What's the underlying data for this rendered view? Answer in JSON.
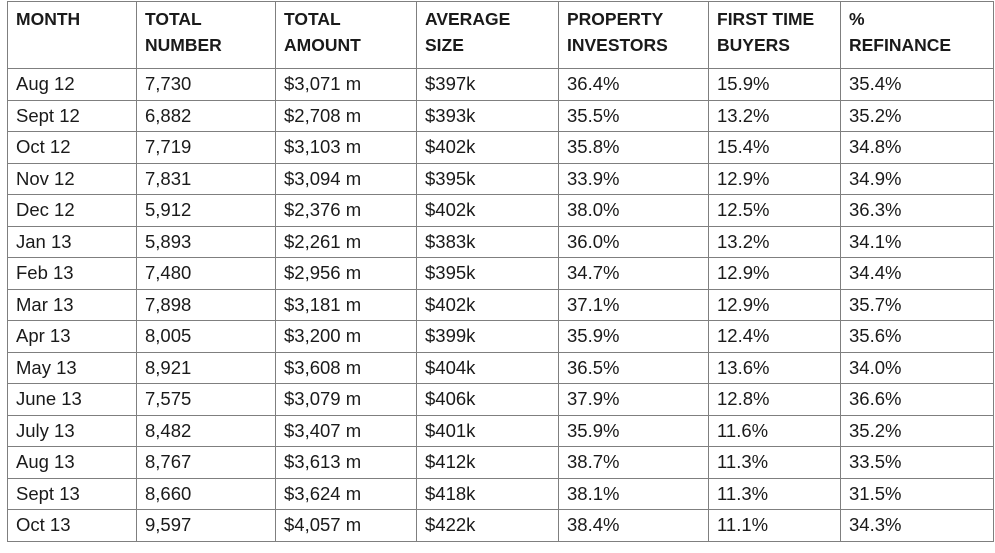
{
  "table": {
    "header": [
      [
        "MONTH"
      ],
      [
        "TOTAL",
        "NUMBER"
      ],
      [
        "TOTAL",
        "AMOUNT"
      ],
      [
        "AVERAGE",
        "SIZE"
      ],
      [
        "PROPERTY",
        "INVESTORS"
      ],
      [
        "FIRST TIME",
        "BUYERS"
      ],
      [
        "%",
        "REFINANCE"
      ]
    ],
    "rows": [
      [
        "Aug 12",
        "7,730",
        "$3,071 m",
        "$397k",
        "36.4%",
        "15.9%",
        "35.4%"
      ],
      [
        "Sept 12",
        "6,882",
        "$2,708 m",
        "$393k",
        "35.5%",
        "13.2%",
        "35.2%"
      ],
      [
        "Oct 12",
        "7,719",
        "$3,103 m",
        "$402k",
        "35.8%",
        "15.4%",
        "34.8%"
      ],
      [
        "Nov 12",
        "7,831",
        "$3,094 m",
        "$395k",
        "33.9%",
        "12.9%",
        "34.9%"
      ],
      [
        "Dec 12",
        "5,912",
        "$2,376 m",
        "$402k",
        "38.0%",
        "12.5%",
        "36.3%"
      ],
      [
        "Jan 13",
        "5,893",
        "$2,261 m",
        "$383k",
        "36.0%",
        "13.2%",
        "34.1%"
      ],
      [
        "Feb 13",
        "7,480",
        "$2,956 m",
        "$395k",
        "34.7%",
        "12.9%",
        "34.4%"
      ],
      [
        "Mar 13",
        "7,898",
        "$3,181 m",
        "$402k",
        "37.1%",
        "12.9%",
        "35.7%"
      ],
      [
        "Apr 13",
        "8,005",
        "$3,200 m",
        "$399k",
        "35.9%",
        "12.4%",
        "35.6%"
      ],
      [
        "May 13",
        "8,921",
        "$3,608 m",
        "$404k",
        "36.5%",
        "13.6%",
        "34.0%"
      ],
      [
        "June 13",
        "7,575",
        "$3,079 m",
        "$406k",
        "37.9%",
        "12.8%",
        "36.6%"
      ],
      [
        "July 13",
        "8,482",
        "$3,407 m",
        "$401k",
        "35.9%",
        "11.6%",
        "35.2%"
      ],
      [
        "Aug 13",
        "8,767",
        "$3,613 m",
        "$412k",
        "38.7%",
        "11.3%",
        "33.5%"
      ],
      [
        "Sept 13",
        "8,660",
        "$3,624 m",
        "$418k",
        "38.1%",
        "11.3%",
        "31.5%"
      ],
      [
        "Oct 13",
        "9,597",
        "$4,057 m",
        "$422k",
        "38.4%",
        "11.1%",
        "34.3%"
      ]
    ]
  }
}
